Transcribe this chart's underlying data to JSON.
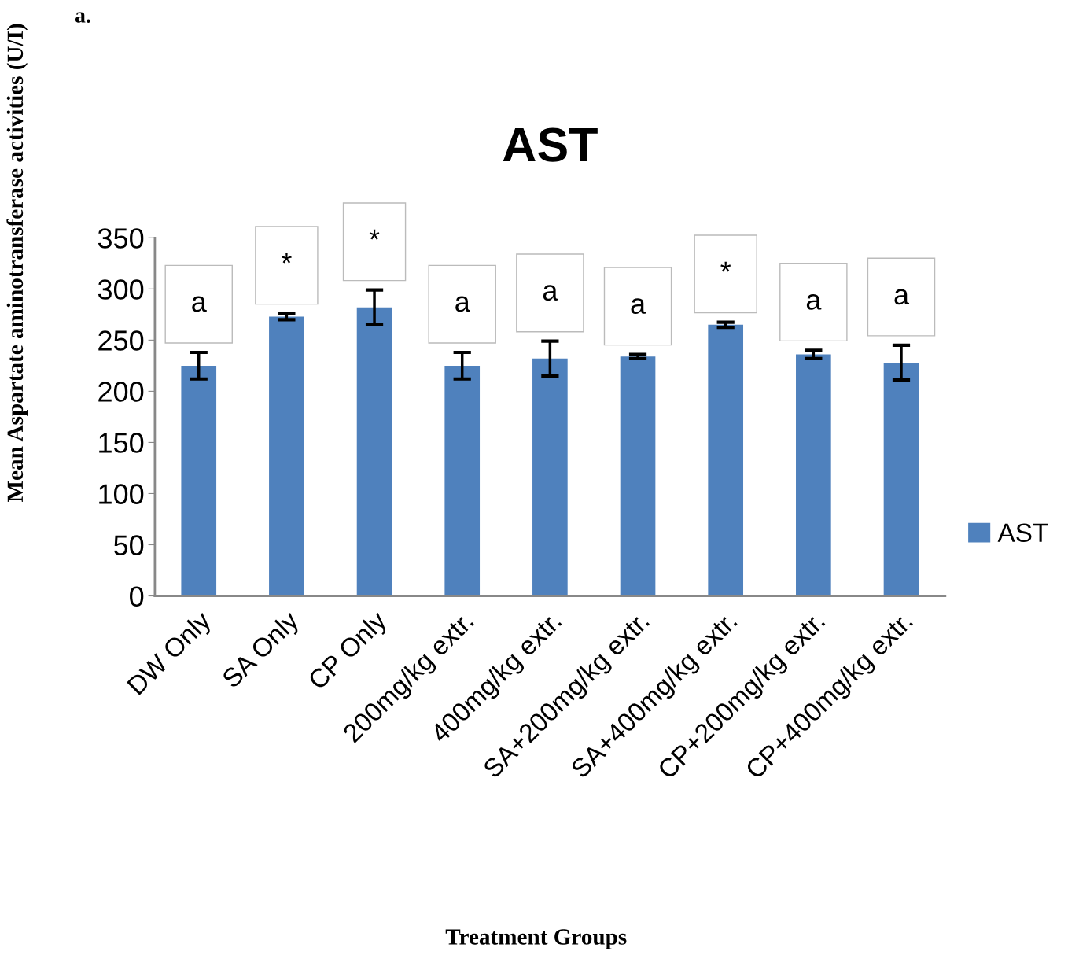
{
  "chart_data": {
    "type": "bar",
    "title": "AST",
    "ylabel": "Mean Aspartate aminotransferase activities (U/I)",
    "categories": [
      "DW Only",
      "SA Only",
      "CP Only",
      "200mg/kg extr.",
      "400mg/kg extr.",
      "SA+200mg/kg extr.",
      "SA+400mg/kg extr.",
      "CP+200mg/kg extr.",
      "CP+400mg/kg extr."
    ],
    "series": [
      {
        "name": "AST",
        "color": "#4f81bd",
        "values": [
          225,
          273,
          282,
          225,
          232,
          234,
          265,
          236,
          228
        ],
        "errors": [
          13,
          3,
          17,
          13,
          17,
          2,
          2.5,
          4,
          17
        ]
      }
    ],
    "ylim": [
      0,
      350
    ],
    "yticks": [
      0,
      50,
      100,
      150,
      200,
      250,
      300,
      350
    ],
    "grid": false,
    "legend": "right",
    "annotations": [
      "a.",
      "Treatment Groups",
      "a",
      "*",
      "*",
      "a",
      "a",
      "a",
      "*",
      "a",
      "a"
    ]
  }
}
